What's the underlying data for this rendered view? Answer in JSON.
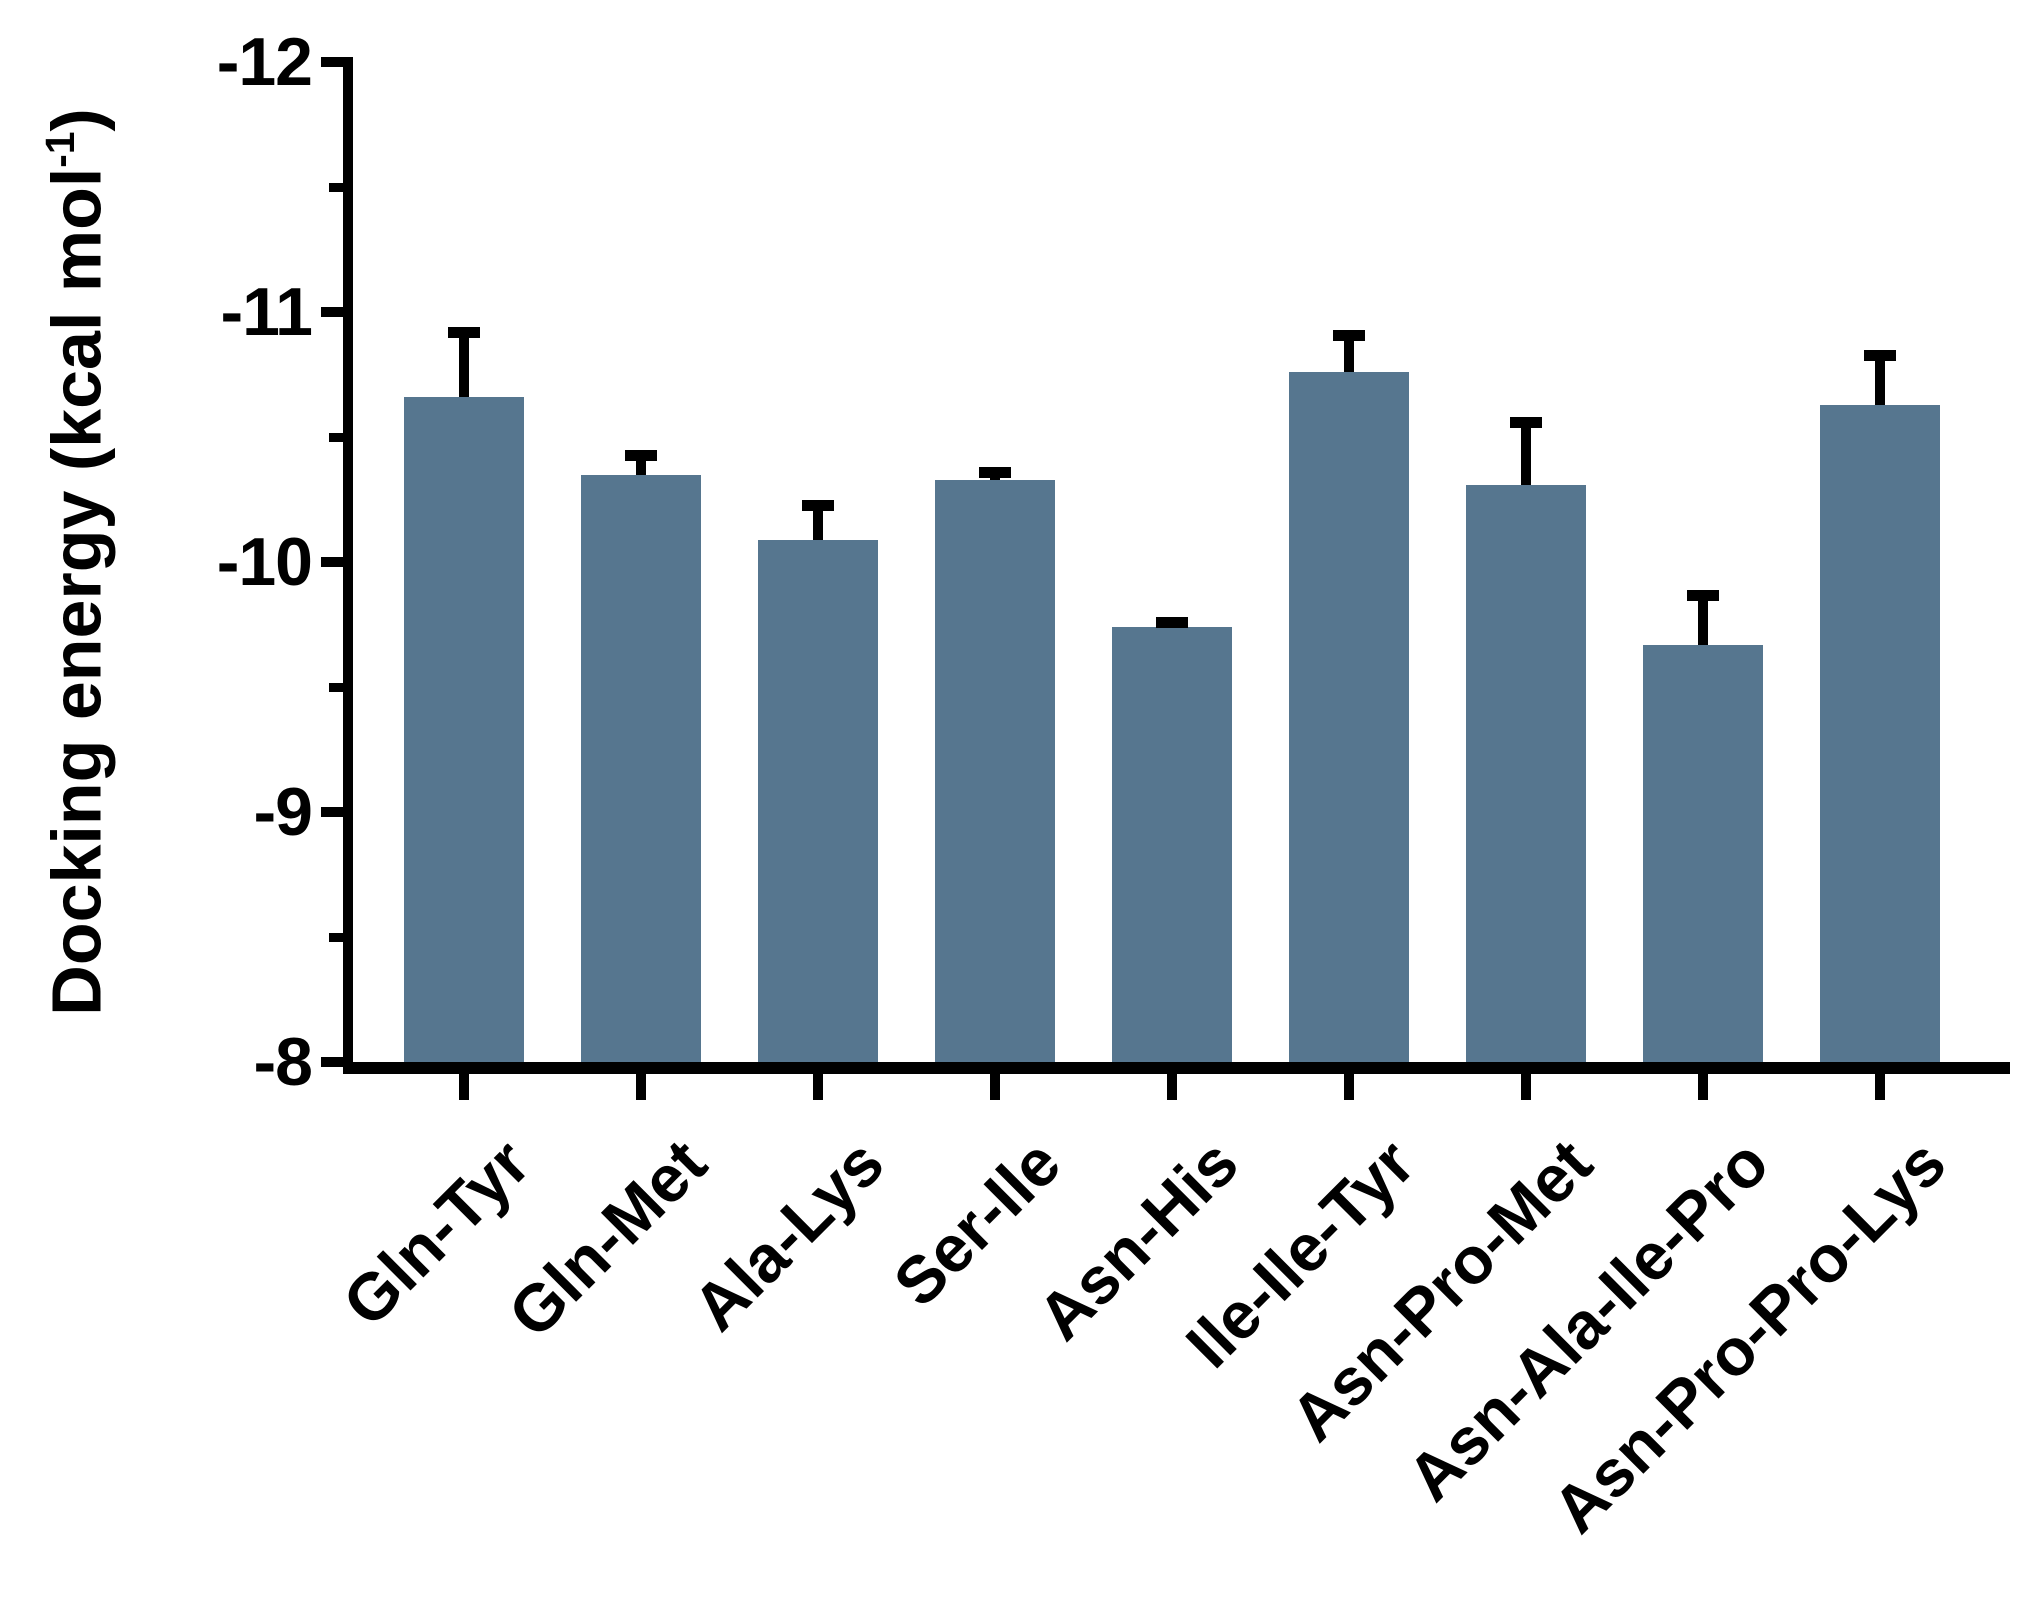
{
  "figure": {
    "background": "#ffffff"
  },
  "y_axis": {
    "title_prefix": "Docking energy (kcal mol",
    "title_sup": "-1",
    "title_suffix": ")",
    "tick_labels": [
      "-12",
      "-11",
      "-10",
      "-9",
      "-8"
    ]
  },
  "chart_data": {
    "type": "bar",
    "title": "",
    "xlabel": "",
    "ylabel": "Docking energy (kcal mol-1)",
    "categories": [
      "Gln-Tyr",
      "Gln-Met",
      "Ala-Lys",
      "Ser-Ile",
      "Asn-His",
      "Ile-Ile-Tyr",
      "Asn-Pro-Met",
      "Asn-Ala-Ile-Pro",
      "Asn-Pro-Pro-Lys"
    ],
    "values": [
      -10.66,
      -10.35,
      -10.09,
      -10.33,
      -9.74,
      -10.76,
      -10.31,
      -9.67,
      -10.63
    ],
    "errors": [
      0.28,
      0.1,
      0.16,
      0.05,
      0.04,
      0.17,
      0.27,
      0.22,
      0.22
    ],
    "error_bar_direction": "upper (toward more negative values)",
    "ylim": [
      -8,
      -12
    ],
    "yticks_major": [
      -12,
      -11,
      -10,
      -9,
      -8
    ],
    "yticks_minor": [
      -11.5,
      -10.5,
      -9.5,
      -8.5
    ],
    "x_tick_label_rotation_deg": 45,
    "grid": false,
    "legend": false,
    "bar_color": "#56768f",
    "error_color": "#000000",
    "axis_color": "#000000",
    "text_color": "#000000"
  }
}
